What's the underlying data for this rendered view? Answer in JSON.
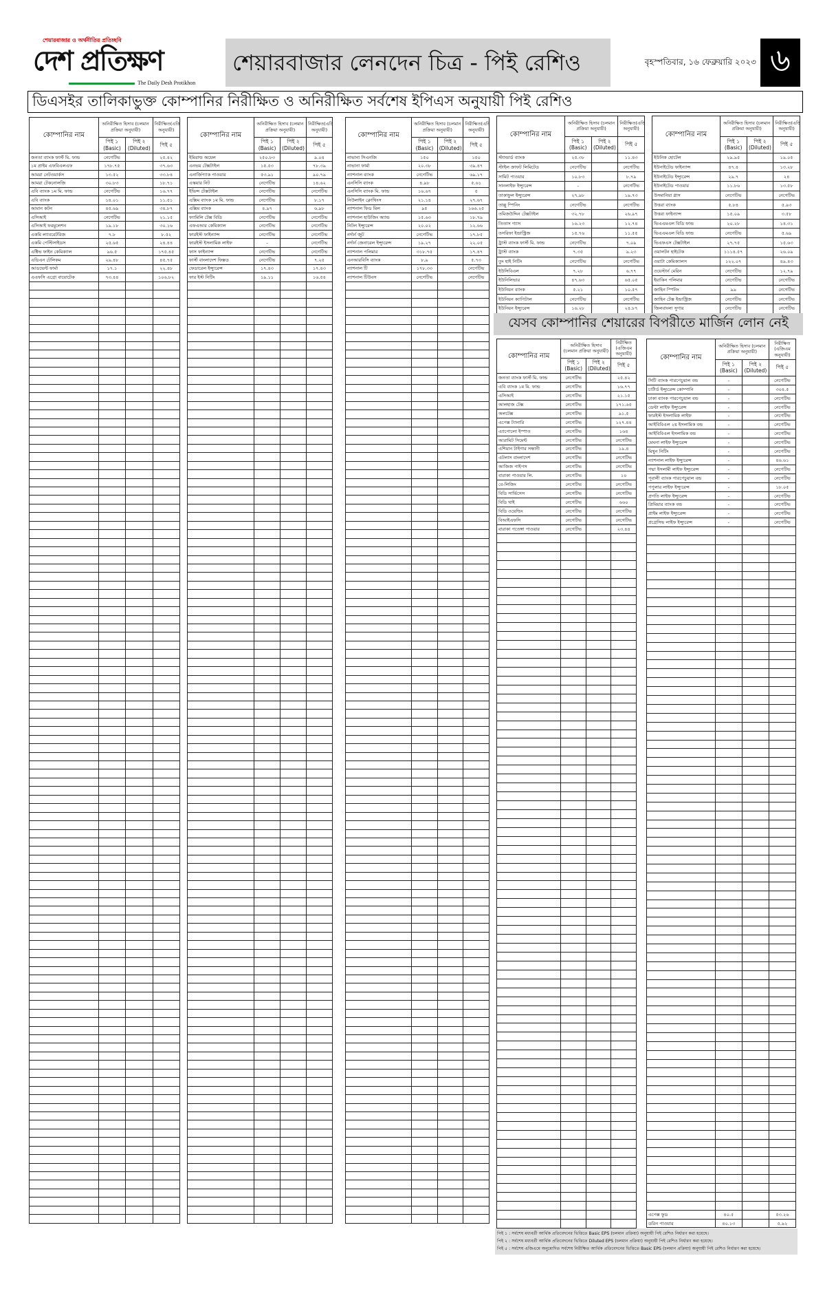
{
  "masthead": {
    "tagline": "শেয়ারবাজার ও অর্থনীতির প্রতিচ্ছবি",
    "logo_name": "দেশ প্রতিক্ষণ",
    "logo_english": "The Daily Desh Protikhon",
    "section_title": "শেয়ারবাজার লেনদেন চিত্র - পিই রেশিও",
    "date": "বৃহস্পতিবার, ১৬ ফেব্রুয়ারি ২০২৩",
    "page_number": "৬",
    "logo_accent_color": "#1a9a3a",
    "tagline_color": "#cc0000"
  },
  "subtitle": "ডিএসইর তালিকাভুক্ত কোম্পানির নিরীক্ষিত ও অনিরীক্ষিত সর্বশেষ ইপিএস অনুযায়ী পিই রেশিও",
  "table_header": {
    "company": "কোম্পানির নাম",
    "unaudited": "অনিরীক্ষিত হিসাব (চলমান প্রক্রিয়া অনুযায়ী)",
    "audited": "নিরীক্ষিত(এজিএম অনুযায়ী)",
    "pe1": "পিই ১ (Basic)",
    "pe2": "পিই ২ (Diluted)",
    "pe5": "পিই ৫"
  },
  "tables": [
    {
      "rows": [
        [
          "জনতা ব্যাংক ফার্স্ট মি. ফান্ড",
          "নেগেটিভ",
          "",
          "২৫.৪২"
        ],
        [
          "১ম প্রাইম এফবিএলএফ",
          "১৭৮.৭৫",
          "",
          "৩৭.৬৩"
        ],
        [
          "আমরা নেটওয়ার্কস",
          "১৩.৫২",
          "",
          "৩৩.৮৪"
        ],
        [
          "আমরা টেকনোলজি",
          "৩০.৮৩",
          "",
          "১৮.৭১"
        ],
        [
          "এবি ব্যাংক ১ম মি. ফান্ড",
          "নেগেটিভ",
          "",
          "১৬.৭৭"
        ],
        [
          "এবি ব্যাংক",
          "১৪.০১",
          "",
          "১১.৫১"
        ],
        [
          "আমান কটন",
          "৪৫.৬৯",
          "",
          "৩৪.৮৭"
        ],
        [
          "এসিআই",
          "নেগেটিভ",
          "",
          "২১.১৫"
        ],
        [
          "এসিআই ফরমুলেশন",
          "১৯.১৮",
          "",
          "৩০.১৬"
        ],
        [
          "একমি ল্যাবরেটরিজ",
          "৭.৮",
          "",
          "৮.৫২"
        ],
        [
          "একমি পেস্টিসাইডস",
          "২৫.৬৫",
          "",
          "২৪.৪৪"
        ],
        [
          "এক্টিভ ফাইন কেমিক্যাল",
          "৯৬.৫",
          "",
          "১৭৫.৪৫"
        ],
        [
          "এডিএন টেলিকম",
          "২৯.৪৮",
          "",
          "৪৫.৭৫"
        ],
        [
          "আডভেন্ট ফার্মা",
          "১৭.১",
          "",
          "২২.৪৮"
        ],
        [
          "এএফসি এগ্রো বায়োটেক",
          "৭৩.৪৪",
          "",
          "১০৬.৮২"
        ]
      ]
    },
    {
      "rows": [
        [
          "ইমিরাল্ড অয়েল",
          "২৫০.৮৩",
          "",
          "৯.০৪"
        ],
        [
          "এনভয় টেক্সটাইল",
          "১৫.৫৩",
          "",
          "৭৮.৩৯"
        ],
        [
          "এনার্জিপ্যাক পাওয়ার",
          "৫৩.৯১",
          "",
          "৯০.৭৯"
        ],
        [
          "এস্কয়ার নিট",
          "নেগেটিভ",
          "",
          "১৪.৬২"
        ],
        [
          "ইভিন্স টেক্সটাইল",
          "নেগেটিভ",
          "",
          "নেগেটিভ"
        ],
        [
          "এক্সিম ব্যাংক ১ম মি. ফান্ড",
          "নেগেটিভ",
          "",
          "৮.১৭"
        ],
        [
          "এক্সিম ব্যাংক",
          "৪.৯৭",
          "",
          "৬.৯৮"
        ],
        [
          "ফ্যামিলি টেক্স বিডি",
          "নেগেটিভ",
          "",
          "নেগেটিভ"
        ],
        [
          "এফএআর কেমিক্যাল",
          "নেগেটিভ",
          "",
          "নেগেটিভ"
        ],
        [
          "ফারইস্ট ফাইন্যান্স",
          "নেগেটিভ",
          "",
          "নেগেটিভ"
        ],
        [
          "ফারইস্ট ইসলামিক লাইফ",
          "-",
          "",
          "নেগেটিভ"
        ],
        [
          "ফাস ফাইন্যান্স",
          "নেগেটিভ",
          "",
          "নেগেটিভ"
        ],
        [
          "ফার্স্ট বাংলাদেশ ফিক্সড",
          "নেগেটিভ",
          "",
          "৭.২৫"
        ],
        [
          "ফেডারেল ইন্স্যুরেন্স",
          "১৭.৪৩",
          "",
          "১৭.৪৩"
        ],
        [
          "ফার ইস্ট নিটিং",
          "১৯.১১",
          "",
          "১৬.৫৪"
        ]
      ]
    },
    {
      "rows": [
        [
          "নাভানা সিএনজি",
          "১৫০",
          "",
          "১৫০"
        ],
        [
          "নাভানা ফার্মা",
          "২০.৩৮",
          "",
          "৩৯.৪৭"
        ],
        [
          "ন্যাশনাল ব্যাংক",
          "নেগেটিভ",
          "",
          "৬৯.১৭"
        ],
        [
          "এনসিসি ব্যাংক",
          "৪.৯৮",
          "",
          "৫.৬১"
        ],
        [
          "এনসিসি ব্যাংক মি. ফান্ড",
          "১৬.৬৭",
          "",
          "৫"
        ],
        [
          "নিউলাইন ক্লোথিংস",
          "২১.১৪",
          "",
          "২৭.৬৭"
        ],
        [
          "ন্যাশনাল ফিড মিল",
          "৯৫",
          "",
          "১৬৬.২৫"
        ],
        [
          "ন্যাশনাল হাউজিং অ্যান্ড",
          "১৫.৬৩",
          "",
          "১৮.৭৯"
        ],
        [
          "নিটল ইন্স্যুরেন্স",
          "২০.০২",
          "",
          "১২.৬৬"
        ],
        [
          "নর্দার্ন জুট",
          "নেগেটিভ",
          "",
          "১৭.৮৫"
        ],
        [
          "নর্দার্ন জেনারেল ইন্স্যুরেন্স",
          "১৯.২৭",
          "",
          "২২.০৫"
        ],
        [
          "ন্যাশনাল পলিমার",
          "৩১৮.৭৫",
          "",
          "১৭.৪৭"
        ],
        [
          "এনআরবিসি ব্যাংক",
          "৮.৯",
          "",
          "৫.৭৩"
        ],
        [
          "ন্যাশনাল টি",
          "১৭৮.৩৩",
          "",
          "নেগেটিভ"
        ],
        [
          "ন্যাশনাল টিউবস",
          "নেগেটিভ",
          "",
          "নেগেটিভ"
        ]
      ]
    },
    {
      "rows": [
        [
          "স্ট্যান্ডার্ড ব্যাংক",
          "২৫.৩৮",
          "",
          "১১.৪৩"
        ],
        [
          "স্টাইল ক্রাফট লিমিটেড",
          "নেগেটিভ",
          "",
          "নেগেটিভ"
        ],
        [
          "সামিট পাওয়ার",
          "১০.৮৩",
          "",
          "৮.৭৯"
        ],
        [
          "সানলাইফ ইন্স্যুরেন্স",
          "-",
          "",
          "নেগেটিভ"
        ],
        [
          "তাকাফুল ইন্স্যুরেন্স",
          "২৭.৯৮",
          "",
          "১৯.৭৩"
        ],
        [
          "তাল্লু স্পিনিং",
          "নেগেটিভ",
          "",
          "নেগেটিভ"
        ],
        [
          "তমিজউদ্দিন টেক্সটাইল",
          "৩২.৭৮",
          "",
          "২৬.৯৭"
        ],
        [
          "তিতাস গ্যাস",
          "১৬.২৩",
          "",
          "১২.৭৪"
        ],
        [
          "তসরিফা ইন্ডাস্ট্রিজ",
          "১৫.৭৬",
          "",
          "১১.৫৫"
        ],
        [
          "ট্রাস্ট ব্যাংক ফার্স্ট মি. ফান্ড",
          "নেগেটিভ",
          "",
          "৭.০৯"
        ],
        [
          "ট্রাস্ট ব্যাংক",
          "৭.৩৫",
          "",
          "৯.২৩"
        ],
        [
          "তুং হাই নিটিং",
          "নেগেটিভ",
          "",
          "নেগেটিভ"
        ],
        [
          "ইউসিবিএল",
          "৭.২৮",
          "",
          "৬.৭৭"
        ],
        [
          "ইউনিলিভার",
          "৪৭.৬৩",
          "",
          "৬৫.০৫"
        ],
        [
          "ইউনিয়ন ব্যাংক",
          "৫.২১",
          "",
          "১০.৫৭"
        ],
        [
          "ইউনিয়ন ক্যাপিটাল",
          "নেগেটিভ",
          "",
          "নেগেটিভ"
        ],
        [
          "ইউনিয়ন ইন্স্যুরেন্স",
          "১৬.২৮",
          "",
          "২৪.৮৭"
        ]
      ]
    },
    {
      "rows": [
        [
          "ইউনিক হোটেল",
          "২৯.৯৫",
          "",
          "১৯.০৫"
        ],
        [
          "ইউনাইটেড ফাইন্যান্স",
          "৪৭.৪",
          "",
          "১৩.২৮"
        ],
        [
          "ইউনাইটেড ইন্স্যুরেন্স",
          "২৯.৭",
          "",
          "২৪"
        ],
        [
          "ইউনাইটেড পাওয়ার",
          "১১.৮৬",
          "",
          "১৩.৫৮"
        ],
        [
          "উসমানিয়া গ্লাস",
          "নেগেটিভ",
          "",
          "নেগেটিভ"
        ],
        [
          "উত্তরা ব্যাংক",
          "৫.৮৪",
          "",
          "৫.৯৩"
        ],
        [
          "উত্তরা ফাইন্যান্স",
          "১৫.০৯",
          "",
          "৩.৫৮"
        ],
        [
          "ভিএএমএল বিডি ফান্ড",
          "২০.২৮",
          "",
          "১৪.৩১"
        ],
        [
          "ভিএএমএল বিডি ফান্ড",
          "নেগেটিভ",
          "",
          "৫.৬৯"
        ],
        [
          "ভিএফএস টেক্সটাইল",
          "২৭.৭৫",
          "",
          "১৫.৬৩"
        ],
        [
          "ওয়ালটন হাইটেক",
          "১১১৪.৫৭",
          "",
          "২৬.০৯"
        ],
        [
          "ওয়াটা কেমিক্যালস",
          "১২২.০৭",
          "",
          "৪৯.৪৩"
        ],
        [
          "ওয়েস্টার্ন মেরিন",
          "নেগেটিভ",
          "",
          "১২.৭৯"
        ],
        [
          "ইয়াকিন পলিমার",
          "নেগেটিভ",
          "",
          "নেগেটিভ"
        ],
        [
          "জাহিন স্পিনিং",
          "৯৯",
          "",
          "নেগেটিভ"
        ],
        [
          "জাহিন টেক্স ইন্ডাস্ট্রিজ",
          "নেগেটিভ",
          "",
          "নেগেটিভ"
        ],
        [
          "জিলবাংলা সুগার",
          "নেগেটিভ",
          "",
          "নেগেটিভ"
        ]
      ]
    }
  ],
  "margin_section": {
    "title": "যেসব কোম্পানির শেয়ারের বিপরীতে মার্জিন লোন নেই",
    "audited_header": "নিরীক্ষিত (এজিএম অনুযায়ী)",
    "tables": [
      {
        "rows": [
          [
            "জনতা ব্যাংক ফার্স্ট মি. ফান্ড",
            "নেগেটিভ",
            "",
            "২৫.৪২"
          ],
          [
            "এবি ব্যাংক ১ম মি. ফান্ড",
            "নেগেটিভ",
            "",
            "১৬.৭৭"
          ],
          [
            "এসিআই",
            "নেগেটিভ",
            "",
            "২১.১৫"
          ],
          [
            "আলহাজ টেক্স",
            "নেগেটিভ",
            "",
            "১৭১.৬৫"
          ],
          [
            "অলটেক্স",
            "নেগেটিভ",
            "",
            "৯১.৫"
          ],
          [
            "এপেক্স ট্যানারি",
            "নেগেটিভ",
            "",
            "১২৭.৪৪"
          ],
          [
            "এ্যাপোলো ইস্পাত",
            "নেগেটিভ",
            "",
            "১৬৪"
          ],
          [
            "আরামিট সিমেন্ট",
            "নেগেটিভ",
            "",
            "নেগেটিভ"
          ],
          [
            "এশিয়ান টাইগার সন্ধানী",
            "নেগেটিভ",
            "",
            "১৯.৪"
          ],
          [
            "এটলাস বাংলাদেশ",
            "নেগেটিভ",
            "",
            "নেগেটিভ"
          ],
          [
            "আজিজ পাইপস",
            "নেগেটিভ",
            "",
            "নেগেটিভ"
          ],
          [
            "বারাকা পাওয়ার লি.",
            "নেগেটিভ",
            "",
            "১০"
          ],
          [
            "বে-লিজিং",
            "নেগেটিভ",
            "",
            "নেগেটিভ"
          ],
          [
            "বিডি সার্ভিসেস",
            "নেগেটিভ",
            "",
            "নেগেটিভ"
          ],
          [
            "বিডি থাই",
            "নেগেটিভ",
            "",
            "৬৬০"
          ],
          [
            "বিডি ওয়েল্ডিং",
            "নেগেটিভ",
            "",
            "নেগেটিভ"
          ],
          [
            "বিআইএফসি",
            "নেগেটিভ",
            "",
            "নেগেটিভ"
          ],
          [
            "বারাকা পতেঙ্গা পাওয়ার",
            "নেগেটিভ",
            "",
            "২৩.৪৪"
          ]
        ]
      },
      {
        "rows": [
          [
            "সিটি ব্যাংক পারপেচুয়াল বন্ড",
            "-",
            "",
            "নেগেটিভ"
          ],
          [
            "চার্টার্ড ইন্স্যুরেন্স কোম্পানি",
            "-",
            "",
            "৩০৪.৫"
          ],
          [
            "ঢাকা ব্যাংক পারপেচুয়াল বন্ড",
            "-",
            "",
            "নেগেটিভ"
          ],
          [
            "ডেল্টা লাইফ ইন্স্যুরেন্স",
            "-",
            "",
            "নেগেটিভ"
          ],
          [
            "ফারইস্ট ইসলামিক লাইফ",
            "-",
            "",
            "নেগেটিভ"
          ],
          [
            "আইবিবিএল ২য় ইসলামিক বন্ড",
            "-",
            "",
            "নেগেটিভ"
          ],
          [
            "আইবিবিএল ইসলামিক বন্ড",
            "-",
            "",
            "নেগেটিভ"
          ],
          [
            "মেঘনা লাইফ ইন্স্যুরেন্স",
            "-",
            "",
            "নেগেটিভ"
          ],
          [
            "মিথুন নিটিং",
            "-",
            "",
            "নেগেটিভ"
          ],
          [
            "ন্যাশনাল লাইফ ইন্স্যুরেন্স",
            "-",
            "",
            "৪৬.৬১"
          ],
          [
            "পদ্মা ইসলামী লাইফ ইন্স্যুরেন্স",
            "-",
            "",
            "নেগেটিভ"
          ],
          [
            "পূবালী ব্যাংক পারপেচুয়াল বন্ড",
            "-",
            "",
            "নেগেটিভ"
          ],
          [
            "পপুলার লাইফ ইন্স্যুরেন্স",
            "-",
            "",
            "১৮.০৫"
          ],
          [
            "প্রগতি লাইফ ইন্স্যুরেন্স",
            "-",
            "",
            "নেগেটিভ"
          ],
          [
            "প্রিমিয়ার ব্যাংক বন্ড",
            "-",
            "",
            "নেগেটিভ"
          ],
          [
            "প্রাইম লাইফ ইন্স্যুরেন্স",
            "-",
            "",
            "নেগেটিভ"
          ],
          [
            "প্রগ্রেসিভ লাইফ ইন্স্যুরেন্স",
            "-",
            "",
            "নেগেটিভ"
          ]
        ],
        "last_rows": [
          [
            "এপেক্স ফুড",
            "৪০.৫",
            "",
            "৫৩.২৬"
          ],
          [
            "ডরিন পাওয়ার",
            "৪০.১৩",
            "",
            "৫.৯২"
          ]
        ]
      }
    ]
  },
  "notes": [
    "পিই ১ : সর্বশেষ মধ্যবর্তী আর্থিক প্রতিবেদনের ভিত্তিতে Basic EPS (চলমান প্রক্রিয়া) অনুযায়ী পিই রেশিও নির্ধারণ করা হয়েছে।",
    "পিই ২ : সর্বশেষ মধ্যবর্তী আর্থিক প্রতিবেদনের ভিত্তিতে Diluted EPS (চলমান প্রক্রিয়া) অনুযায়ী পিই রেশিও নির্ধারণ করা হয়েছে।",
    "পিই ৫ : সর্বশেষ এজিএমে অনুমোদিত সর্বশেষ নিরীক্ষিত আর্থিক প্রতিবেদনের ভিত্তিতে Basic EPS (চলমান প্রক্রিয়া) অনুযায়ী পিই রেশিও নির্ধারণ করা হয়েছে।"
  ]
}
